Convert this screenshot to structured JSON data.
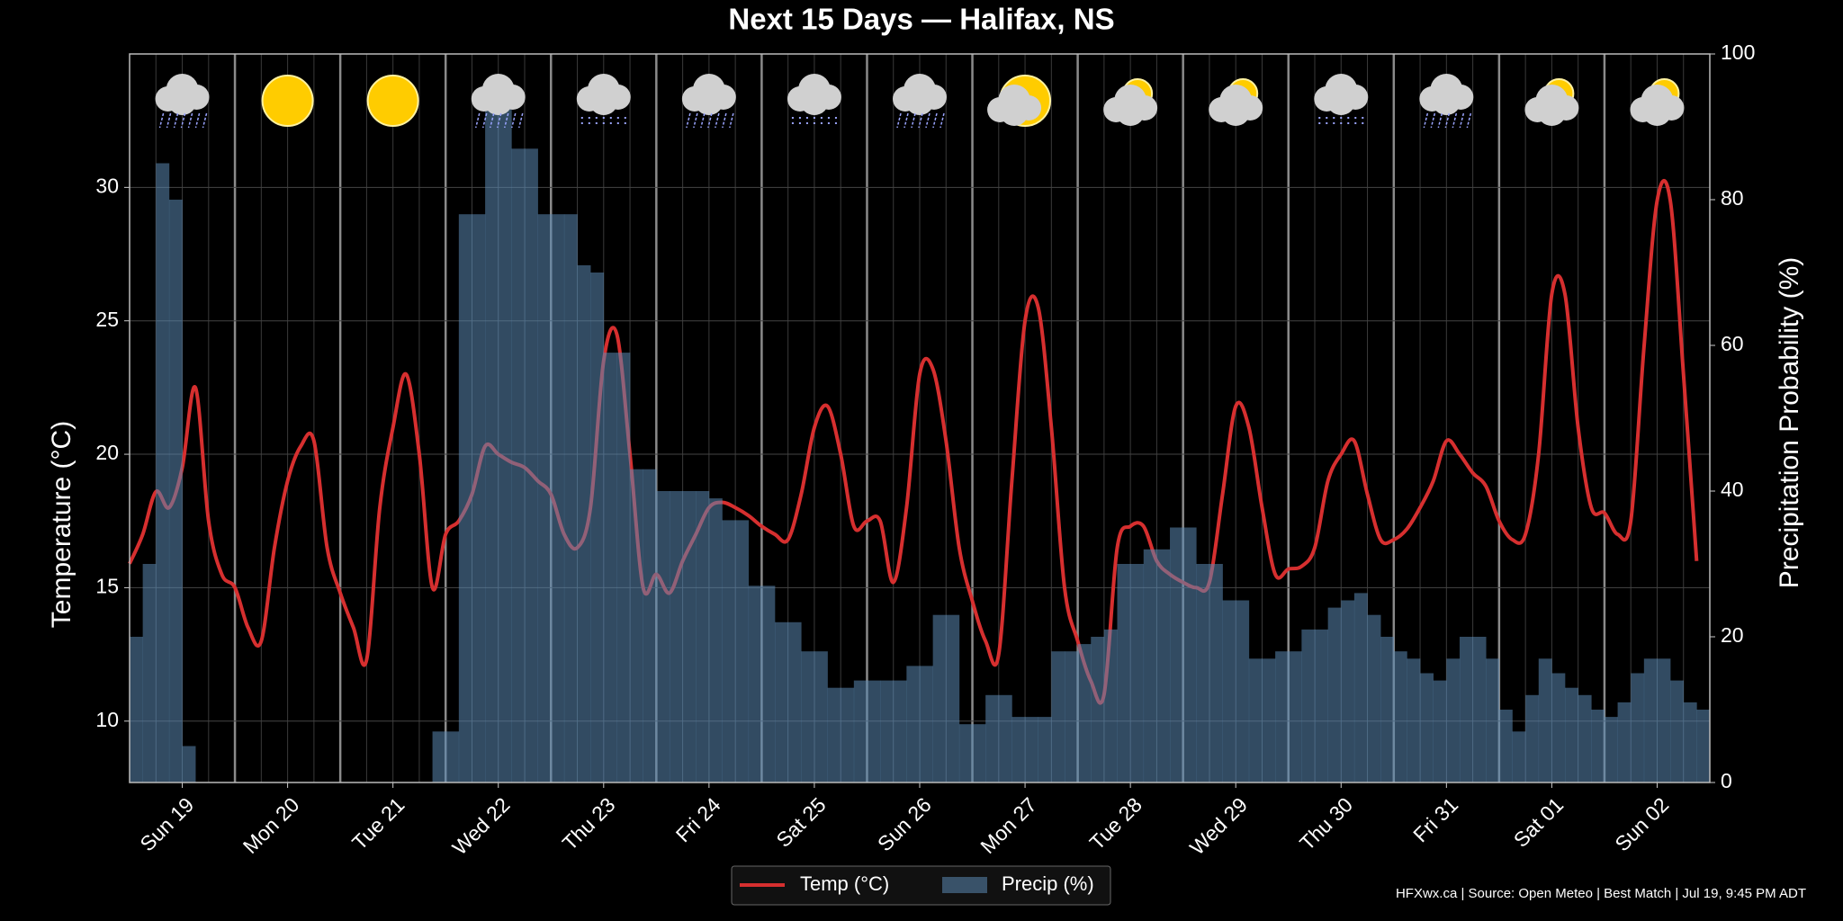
{
  "chart_data": {
    "type": "line",
    "title": "Next 15 Days — Halifax, NS",
    "ylabel": "Temperature (°C)",
    "y2label": "Precipitation Probability (%)",
    "footer": "HFXwx.ca | Source: Open Meteo | Best Match | Jul 19, 9:45 PM ADT",
    "categories": [
      null,
      null,
      null,
      null,
      "Sun 19",
      null,
      null,
      null,
      null,
      null,
      null,
      null,
      "Mon 20",
      null,
      null,
      null,
      null,
      null,
      null,
      null,
      "Tue 21",
      null,
      null,
      null,
      null,
      null,
      null,
      null,
      "Wed 22",
      null,
      null,
      null,
      null,
      null,
      null,
      null,
      "Thu 23",
      null,
      null,
      null,
      null,
      null,
      null,
      null,
      "Fri 24",
      null,
      null,
      null,
      null,
      null,
      null,
      null,
      "Sat 25",
      null,
      null,
      null,
      null,
      null,
      null,
      null,
      "Sun 26",
      null,
      null,
      null,
      null,
      null,
      null,
      null,
      "Mon 27",
      null,
      null,
      null,
      null,
      null,
      null,
      null,
      "Tue 28",
      null,
      null,
      null,
      null,
      null,
      null,
      null,
      "Wed 29",
      null,
      null,
      null,
      null,
      null,
      null,
      null,
      "Thu 30",
      null,
      null,
      null,
      null,
      null,
      null,
      null,
      "Fri 31",
      null,
      null,
      null,
      null,
      null,
      null,
      null,
      "Sat 01",
      null,
      null,
      null,
      null,
      null,
      null,
      null,
      "Sun 02",
      null,
      null,
      null
    ],
    "series": [
      {
        "name": "Temp (°C)",
        "color": "#d62f2f",
        "type": "line",
        "values": [
          15.9,
          17.0,
          18.6,
          18.0,
          19.5,
          22.5,
          17.5,
          15.5,
          15.0,
          13.5,
          13.0,
          16.5,
          19.0,
          20.3,
          20.5,
          16.5,
          14.8,
          13.5,
          12.3,
          18.0,
          21.0,
          23.0,
          20.0,
          15.0,
          17.0,
          17.5,
          18.5,
          20.3,
          20.0,
          19.7,
          19.5,
          19.0,
          18.5,
          17.0,
          16.5,
          18.0,
          23.5,
          24.5,
          20.0,
          15.0,
          15.5,
          14.8,
          16.0,
          17.0,
          18.0,
          18.2,
          18.0,
          17.7,
          17.3,
          17.0,
          16.8,
          18.5,
          21.0,
          21.8,
          20.0,
          17.3,
          17.5,
          17.5,
          15.2,
          18.0,
          23.0,
          23.2,
          20.5,
          16.5,
          14.5,
          13.0,
          12.5,
          19.0,
          25.0,
          25.5,
          21.0,
          15.0,
          13.0,
          11.5,
          11.0,
          16.5,
          17.3,
          17.3,
          16.0,
          15.5,
          15.2,
          15.0,
          15.2,
          18.5,
          21.8,
          21.0,
          18.0,
          15.5,
          15.7,
          15.8,
          16.5,
          19.0,
          20.0,
          20.5,
          18.5,
          16.8,
          16.8,
          17.2,
          18.0,
          19.0,
          20.5,
          20.0,
          19.3,
          18.8,
          17.5,
          16.8,
          17.0,
          20.0,
          26.0,
          26.0,
          21.0,
          18.0,
          17.8,
          17.0,
          17.5,
          24.0,
          29.5,
          29.5,
          23.0,
          16.0
        ]
      },
      {
        "name": "Precip (%)",
        "color": "#5b88b2",
        "type": "bar",
        "axis": "y2",
        "values": [
          20,
          30,
          85,
          80,
          5,
          0,
          0,
          0,
          0,
          0,
          0,
          0,
          0,
          0,
          0,
          0,
          0,
          0,
          0,
          0,
          0,
          0,
          0,
          7,
          7,
          78,
          78,
          93,
          93,
          87,
          87,
          78,
          78,
          78,
          71,
          70,
          59,
          59,
          43,
          43,
          40,
          40,
          40,
          40,
          39,
          36,
          36,
          27,
          27,
          22,
          22,
          18,
          18,
          13,
          13,
          14,
          14,
          14,
          14,
          16,
          16,
          23,
          23,
          8,
          8,
          12,
          12,
          9,
          9,
          9,
          18,
          18,
          19,
          20,
          21,
          30,
          30,
          32,
          32,
          35,
          35,
          30,
          30,
          25,
          25,
          17,
          17,
          18,
          18,
          21,
          21,
          24,
          25,
          26,
          23,
          20,
          18,
          17,
          15,
          14,
          17,
          20,
          20,
          17,
          10,
          7,
          12,
          17,
          15,
          13,
          12,
          10,
          9,
          11,
          15,
          17,
          17,
          14,
          11,
          10
        ]
      }
    ],
    "ylim": [
      7.7,
      35
    ],
    "yticks": [
      10,
      15,
      20,
      25,
      30
    ],
    "y2lim": [
      0,
      100
    ],
    "y2ticks": [
      0,
      20,
      40,
      60,
      80,
      100
    ],
    "grid": true
  }
}
